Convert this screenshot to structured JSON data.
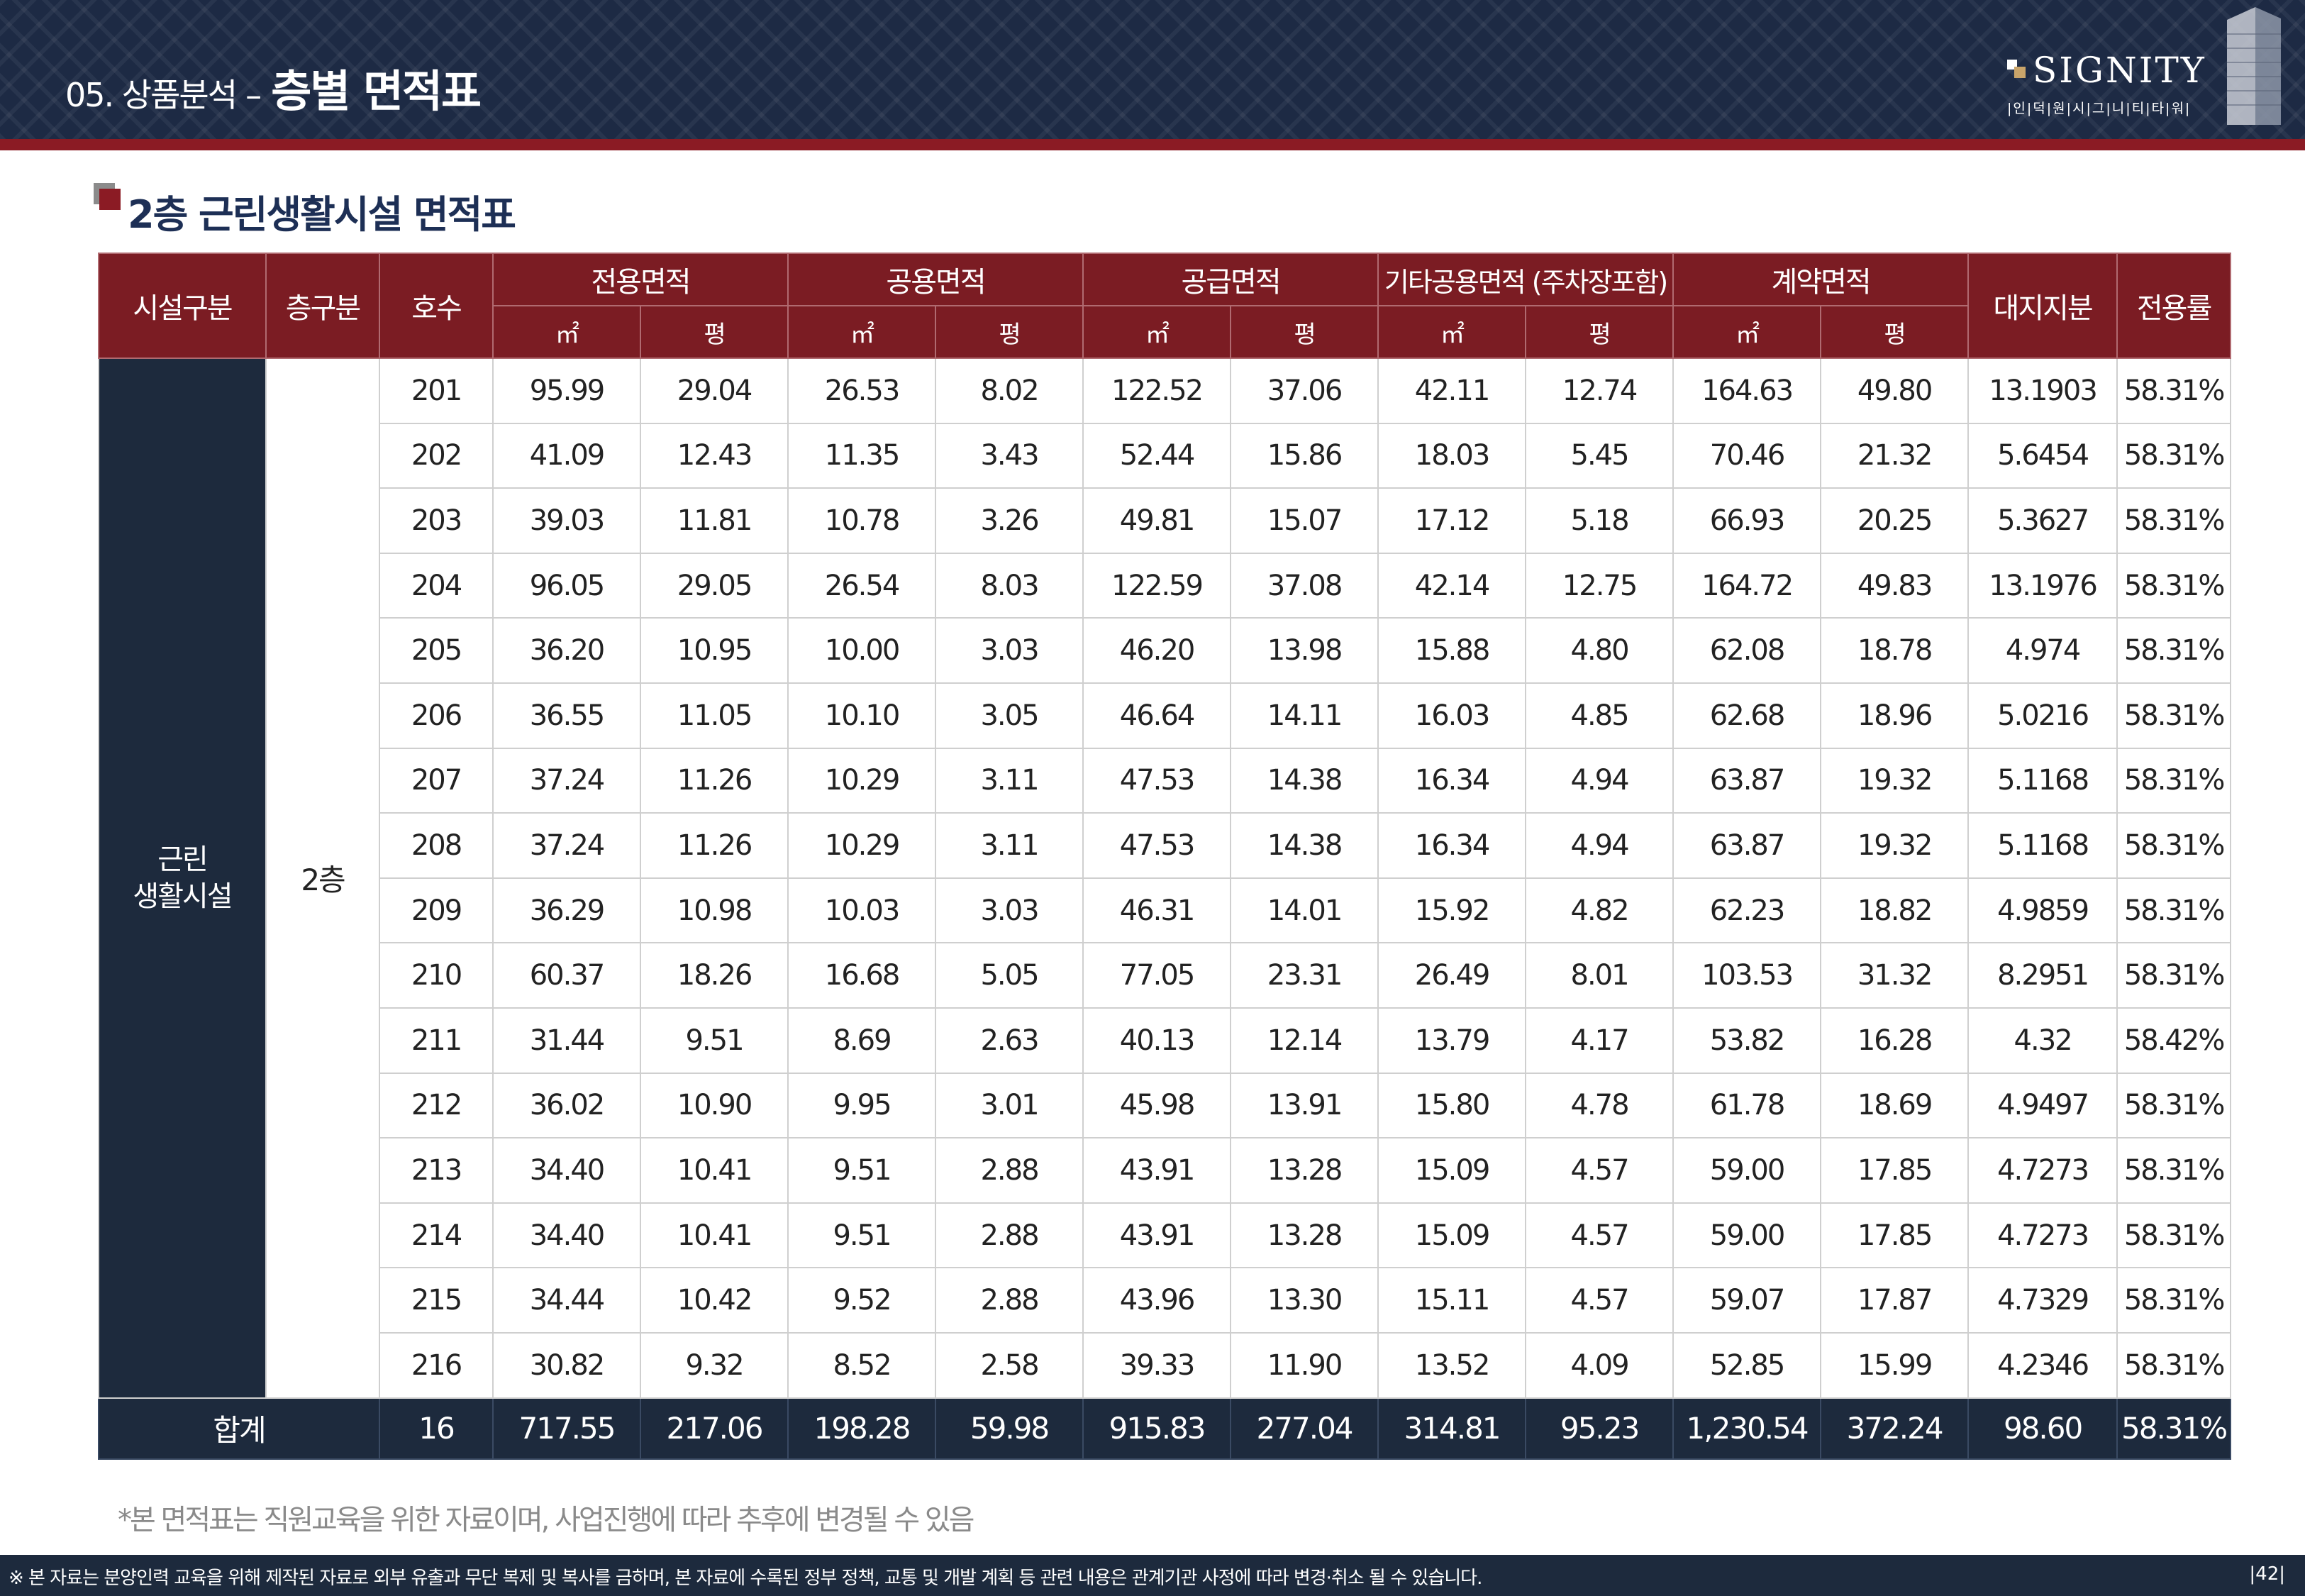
{
  "header": {
    "section": "05. 상품분석",
    "separator": "–",
    "title": "층별 면적표",
    "logo_name": "SIGNITY",
    "logo_sub": "|인|덕|원|시|그|니|티|타|워|"
  },
  "section_title": "2층 근린생활시설 면적표",
  "table": {
    "headers": {
      "facility": "시설구분",
      "floor": "층구분",
      "unit": "호수",
      "exclusive": "전용면적",
      "common": "공용면적",
      "supply": "공급면적",
      "other_common": "기타공용면적 (주차장포함)",
      "contract": "계약면적",
      "land_share": "대지지분",
      "ratio": "전용률",
      "sqm": "㎡",
      "pyeong": "평"
    },
    "facility": "근린\n생활시설",
    "floor": "2층",
    "rows": [
      [
        "201",
        "95.99",
        "29.04",
        "26.53",
        "8.02",
        "122.52",
        "37.06",
        "42.11",
        "12.74",
        "164.63",
        "49.80",
        "13.1903",
        "58.31%"
      ],
      [
        "202",
        "41.09",
        "12.43",
        "11.35",
        "3.43",
        "52.44",
        "15.86",
        "18.03",
        "5.45",
        "70.46",
        "21.32",
        "5.6454",
        "58.31%"
      ],
      [
        "203",
        "39.03",
        "11.81",
        "10.78",
        "3.26",
        "49.81",
        "15.07",
        "17.12",
        "5.18",
        "66.93",
        "20.25",
        "5.3627",
        "58.31%"
      ],
      [
        "204",
        "96.05",
        "29.05",
        "26.54",
        "8.03",
        "122.59",
        "37.08",
        "42.14",
        "12.75",
        "164.72",
        "49.83",
        "13.1976",
        "58.31%"
      ],
      [
        "205",
        "36.20",
        "10.95",
        "10.00",
        "3.03",
        "46.20",
        "13.98",
        "15.88",
        "4.80",
        "62.08",
        "18.78",
        "4.974",
        "58.31%"
      ],
      [
        "206",
        "36.55",
        "11.05",
        "10.10",
        "3.05",
        "46.64",
        "14.11",
        "16.03",
        "4.85",
        "62.68",
        "18.96",
        "5.0216",
        "58.31%"
      ],
      [
        "207",
        "37.24",
        "11.26",
        "10.29",
        "3.11",
        "47.53",
        "14.38",
        "16.34",
        "4.94",
        "63.87",
        "19.32",
        "5.1168",
        "58.31%"
      ],
      [
        "208",
        "37.24",
        "11.26",
        "10.29",
        "3.11",
        "47.53",
        "14.38",
        "16.34",
        "4.94",
        "63.87",
        "19.32",
        "5.1168",
        "58.31%"
      ],
      [
        "209",
        "36.29",
        "10.98",
        "10.03",
        "3.03",
        "46.31",
        "14.01",
        "15.92",
        "4.82",
        "62.23",
        "18.82",
        "4.9859",
        "58.31%"
      ],
      [
        "210",
        "60.37",
        "18.26",
        "16.68",
        "5.05",
        "77.05",
        "23.31",
        "26.49",
        "8.01",
        "103.53",
        "31.32",
        "8.2951",
        "58.31%"
      ],
      [
        "211",
        "31.44",
        "9.51",
        "8.69",
        "2.63",
        "40.13",
        "12.14",
        "13.79",
        "4.17",
        "53.82",
        "16.28",
        "4.32",
        "58.42%"
      ],
      [
        "212",
        "36.02",
        "10.90",
        "9.95",
        "3.01",
        "45.98",
        "13.91",
        "15.80",
        "4.78",
        "61.78",
        "18.69",
        "4.9497",
        "58.31%"
      ],
      [
        "213",
        "34.40",
        "10.41",
        "9.51",
        "2.88",
        "43.91",
        "13.28",
        "15.09",
        "4.57",
        "59.00",
        "17.85",
        "4.7273",
        "58.31%"
      ],
      [
        "214",
        "34.40",
        "10.41",
        "9.51",
        "2.88",
        "43.91",
        "13.28",
        "15.09",
        "4.57",
        "59.00",
        "17.85",
        "4.7273",
        "58.31%"
      ],
      [
        "215",
        "34.44",
        "10.42",
        "9.52",
        "2.88",
        "43.96",
        "13.30",
        "15.11",
        "4.57",
        "59.07",
        "17.87",
        "4.7329",
        "58.31%"
      ],
      [
        "216",
        "30.82",
        "9.32",
        "8.52",
        "2.58",
        "39.33",
        "11.90",
        "13.52",
        "4.09",
        "52.85",
        "15.99",
        "4.2346",
        "58.31%"
      ]
    ],
    "total_label": "합계",
    "total": [
      "16",
      "717.55",
      "217.06",
      "198.28",
      "59.98",
      "915.83",
      "277.04",
      "314.81",
      "95.23",
      "1,230.54",
      "372.24",
      "98.60",
      "58.31%"
    ]
  },
  "note": "*본 면적표는 직원교육을 위한 자료이며, 사업진행에 따라 추후에 변경될 수 있음",
  "footer": {
    "disclaimer": "※ 본 자료는 분양인력 교육을 위해 제작된 자료로 외부 유출과 무단 복제 및 복사를 금하며, 본 자료에 수록된 정부 정책, 교통 및 개발 계획 등 관련 내용은 관계기관 사정에 따라 변경·취소 될 수 있습니다.",
    "page": "|42|"
  },
  "colors": {
    "navy": "#1d2a3d",
    "maroon": "#7b1c23",
    "accent_red": "#8b1b24",
    "title_blue": "#1d2f55"
  }
}
